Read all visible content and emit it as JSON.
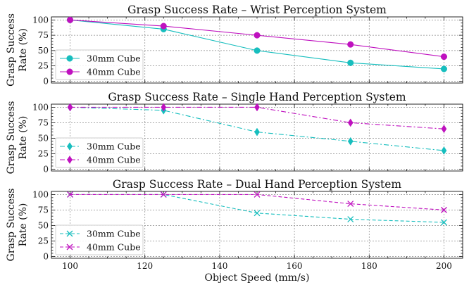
{
  "chart_data": [
    {
      "type": "line",
      "title": "Grasp Success Rate – Wrist Perception System",
      "ylabel": [
        "Grasp Success",
        "Rate (%)"
      ],
      "xlabel": "",
      "x": [
        100,
        125,
        150,
        175,
        200
      ],
      "xlim": [
        95,
        205
      ],
      "ylim": [
        -3,
        105
      ],
      "yticks": [
        0,
        25,
        50,
        75,
        100
      ],
      "grid": true,
      "legend_position": "lower-left",
      "series": [
        {
          "name": "30mm Cube",
          "color": "#17bebe",
          "marker": "circle",
          "linestyle": "solid",
          "values": [
            100,
            85,
            50,
            30,
            20
          ]
        },
        {
          "name": "40mm Cube",
          "color": "#bf11bf",
          "marker": "circle",
          "linestyle": "solid",
          "values": [
            100,
            90,
            75,
            60,
            40
          ]
        }
      ]
    },
    {
      "type": "line",
      "title": "Grasp Success Rate – Single Hand Perception System",
      "ylabel": [
        "Grasp Success",
        "Rate (%)"
      ],
      "xlabel": "",
      "x": [
        100,
        125,
        150,
        175,
        200
      ],
      "xlim": [
        95,
        205
      ],
      "ylim": [
        -3,
        105
      ],
      "yticks": [
        0,
        25,
        50,
        75,
        100
      ],
      "grid": true,
      "legend_position": "lower-left",
      "series": [
        {
          "name": "30mm Cube",
          "color": "#17bebe",
          "marker": "diamond",
          "linestyle": "dashdot",
          "values": [
            100,
            95,
            60,
            45,
            30
          ]
        },
        {
          "name": "40mm Cube",
          "color": "#bf11bf",
          "marker": "diamond",
          "linestyle": "dashdot",
          "values": [
            100,
            100,
            100,
            75,
            65
          ]
        }
      ]
    },
    {
      "type": "line",
      "title": "Grasp Success Rate – Dual Hand Perception System",
      "ylabel": [
        "Grasp Success",
        "Rate (%)"
      ],
      "xlabel": "Object Speed (mm/s)",
      "x": [
        100,
        125,
        150,
        175,
        200
      ],
      "xlim": [
        95,
        205
      ],
      "ylim": [
        -3,
        105
      ],
      "yticks": [
        0,
        25,
        50,
        75,
        100
      ],
      "xticks": [
        100,
        120,
        140,
        160,
        180,
        200
      ],
      "grid": true,
      "legend_position": "lower-left",
      "series": [
        {
          "name": "30mm Cube",
          "color": "#17bebe",
          "marker": "x",
          "linestyle": "dashed",
          "values": [
            100,
            100,
            70,
            60,
            55
          ]
        },
        {
          "name": "40mm Cube",
          "color": "#bf11bf",
          "marker": "x",
          "linestyle": "dashed",
          "values": [
            100,
            100,
            100,
            85,
            75
          ]
        }
      ]
    }
  ]
}
